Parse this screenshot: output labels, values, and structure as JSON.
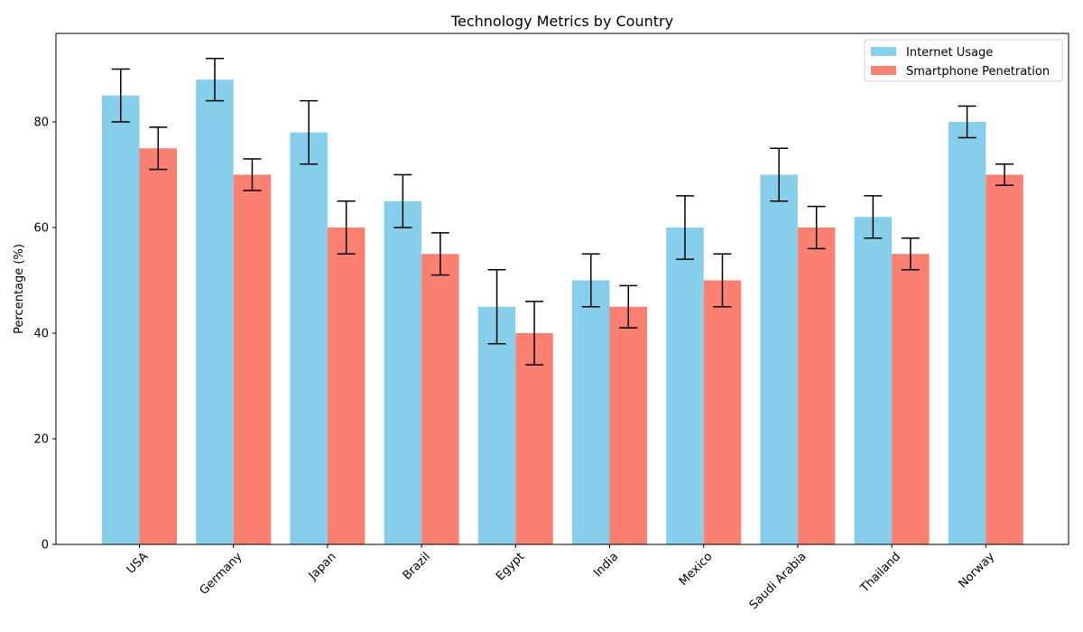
{
  "chart_data": {
    "type": "bar",
    "title": "Technology Metrics by Country",
    "xlabel": "",
    "ylabel": "Percentage (%)",
    "ylim": [
      0,
      96.75
    ],
    "yticks": [
      0,
      20,
      40,
      60,
      80
    ],
    "categories": [
      "USA",
      "Germany",
      "Japan",
      "Brazil",
      "Egypt",
      "India",
      "Mexico",
      "Saudi Arabia",
      "Thailand",
      "Norway"
    ],
    "series": [
      {
        "name": "Internet Usage",
        "color": "#87ceeb",
        "values": [
          85,
          88,
          78,
          65,
          45,
          50,
          60,
          70,
          62,
          80
        ],
        "error_low": [
          80,
          84,
          72,
          60,
          38,
          45,
          54,
          65,
          58,
          77
        ],
        "error_high": [
          90,
          92,
          84,
          70,
          52,
          55,
          66,
          75,
          66,
          83
        ]
      },
      {
        "name": "Smartphone Penetration",
        "color": "#fa8072",
        "values": [
          75,
          70,
          60,
          55,
          40,
          45,
          50,
          60,
          55,
          70
        ],
        "error_low": [
          71,
          67,
          55,
          51,
          34,
          41,
          45,
          56,
          52,
          68
        ],
        "error_high": [
          79,
          73,
          65,
          59,
          46,
          49,
          55,
          64,
          58,
          72
        ]
      }
    ],
    "legend": {
      "placement": "top-right"
    },
    "grid": false
  }
}
